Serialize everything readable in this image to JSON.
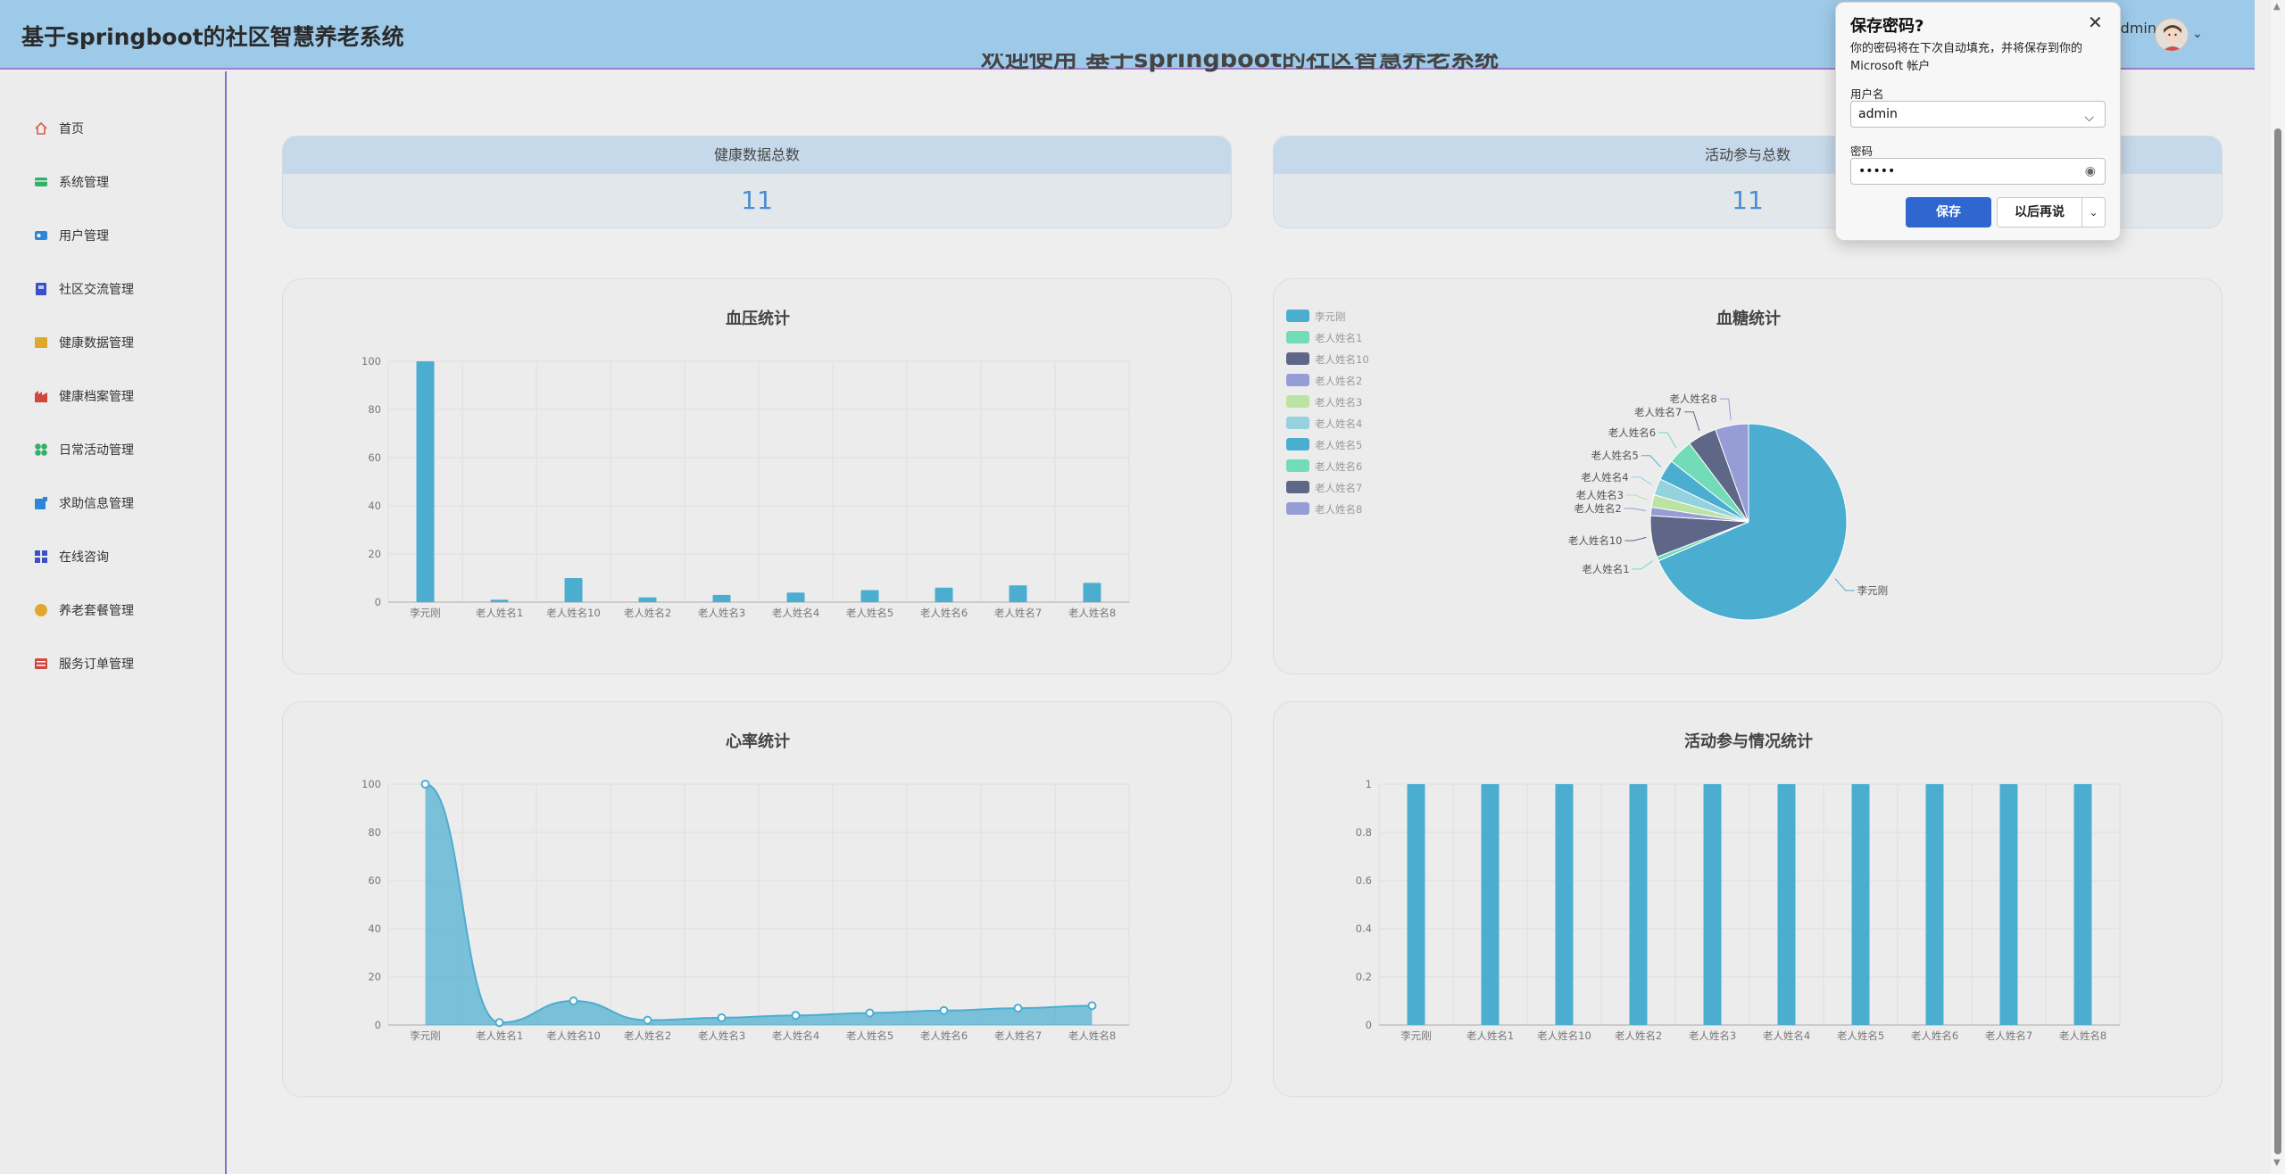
{
  "app": {
    "title": "基于springboot的社区智慧养老系统",
    "user_text": "dmin"
  },
  "welcome": "欢迎使用 基于springboot的社区智慧养老系统",
  "sidebar": {
    "items": [
      {
        "label": "首页",
        "icon": "home-icon",
        "color": "#e05a4a"
      },
      {
        "label": "系统管理",
        "icon": "system-icon",
        "color": "#35b06a"
      },
      {
        "label": "用户管理",
        "icon": "user-icon",
        "color": "#2f86d8"
      },
      {
        "label": "社区交流管理",
        "icon": "community-icon",
        "color": "#3a4fc9"
      },
      {
        "label": "健康数据管理",
        "icon": "health-data-icon",
        "color": "#e0a82c"
      },
      {
        "label": "健康档案管理",
        "icon": "health-record-icon",
        "color": "#d0483d"
      },
      {
        "label": "日常活动管理",
        "icon": "activity-icon",
        "color": "#35b06a"
      },
      {
        "label": "求助信息管理",
        "icon": "help-icon",
        "color": "#2f86d8"
      },
      {
        "label": "在线咨询",
        "icon": "consult-icon",
        "color": "#3a4fc9"
      },
      {
        "label": "养老套餐管理",
        "icon": "package-icon",
        "color": "#e0a82c"
      },
      {
        "label": "服务订单管理",
        "icon": "order-icon",
        "color": "#d0483d"
      }
    ]
  },
  "stats": [
    {
      "label": "健康数据总数",
      "value": "11"
    },
    {
      "label": "活动参与总数",
      "value": "11"
    }
  ],
  "password_dialog": {
    "title": "保存密码?",
    "description": "你的密码将在下次自动填充，并将保存到你的 Microsoft 帐户",
    "username_label": "用户名",
    "username_value": "admin",
    "password_label": "密码",
    "password_value": "•••••",
    "save_label": "保存",
    "later_label": "以后再说",
    "close_glyph": "✕",
    "chevron_glyph": "⌵",
    "eye_glyph": "◉",
    "more_glyph": "⌄"
  },
  "colors": {
    "accent": "#4baed1",
    "header": "#9ecae9",
    "sidebar_border": "#8a6fc5"
  },
  "chart_data": [
    {
      "type": "bar",
      "title": "血压统计",
      "categories": [
        "李元刚",
        "老人姓名1",
        "老人姓名10",
        "老人姓名2",
        "老人姓名3",
        "老人姓名4",
        "老人姓名5",
        "老人姓名6",
        "老人姓名7",
        "老人姓名8"
      ],
      "values": [
        100,
        1,
        10,
        2,
        3,
        4,
        5,
        6,
        7,
        8
      ],
      "ylim": [
        0,
        100
      ],
      "yticks": [
        0,
        20,
        40,
        60,
        80,
        100
      ],
      "grid": true,
      "color": "#4baed1"
    },
    {
      "type": "pie",
      "title": "血糖统计",
      "categories": [
        "李元刚",
        "老人姓名1",
        "老人姓名10",
        "老人姓名2",
        "老人姓名3",
        "老人姓名4",
        "老人姓名5",
        "老人姓名6",
        "老人姓名7",
        "老人姓名8"
      ],
      "values": [
        100,
        1,
        10,
        2,
        3,
        4,
        5,
        6,
        7,
        8
      ],
      "colors": [
        "#4baed1",
        "#72dbb8",
        "#5f6788",
        "#959cd6",
        "#bbe3a4",
        "#94d2de",
        "#4baed1",
        "#72dbb8",
        "#5f6788",
        "#959cd6"
      ],
      "legend": "left"
    },
    {
      "type": "area",
      "title": "心率统计",
      "categories": [
        "李元刚",
        "老人姓名1",
        "老人姓名10",
        "老人姓名2",
        "老人姓名3",
        "老人姓名4",
        "老人姓名5",
        "老人姓名6",
        "老人姓名7",
        "老人姓名8"
      ],
      "values": [
        100,
        1,
        10,
        2,
        3,
        4,
        5,
        6,
        7,
        8
      ],
      "ylim": [
        0,
        100
      ],
      "yticks": [
        0,
        20,
        40,
        60,
        80,
        100
      ],
      "grid": true,
      "color": "#4baed1"
    },
    {
      "type": "bar",
      "title": "活动参与情况统计",
      "categories": [
        "李元刚",
        "老人姓名1",
        "老人姓名10",
        "老人姓名2",
        "老人姓名3",
        "老人姓名4",
        "老人姓名5",
        "老人姓名6",
        "老人姓名7",
        "老人姓名8"
      ],
      "values": [
        1,
        1,
        1,
        1,
        1,
        1,
        1,
        1,
        1,
        1
      ],
      "ylim": [
        0,
        1
      ],
      "yticks": [
        0,
        0.2,
        0.4,
        0.6,
        0.8,
        1
      ],
      "grid": true,
      "color": "#4baed1"
    }
  ]
}
